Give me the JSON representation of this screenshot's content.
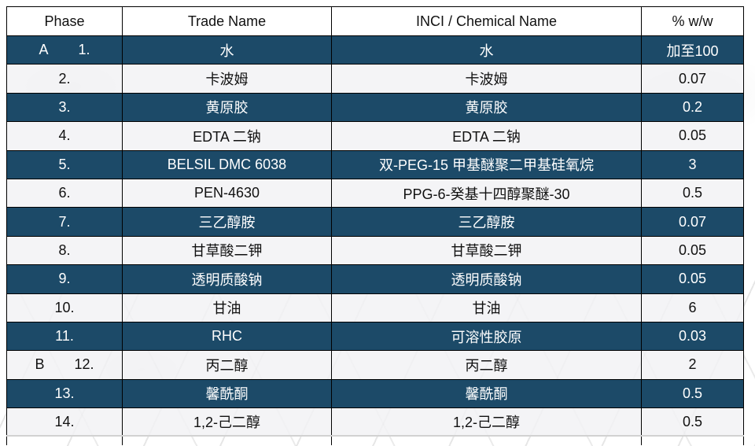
{
  "table": {
    "headers": [
      "Phase",
      "Trade Name",
      "INCI / Chemical Name",
      "% w/w"
    ],
    "rows": [
      {
        "phase_letter": "A",
        "no": "1.",
        "trade": "水",
        "inci": "水",
        "pct": "加至100"
      },
      {
        "phase_letter": "",
        "no": "2.",
        "trade": "卡波姆",
        "inci": "卡波姆",
        "pct": "0.07"
      },
      {
        "phase_letter": "",
        "no": "3.",
        "trade": "黄原胶",
        "inci": "黄原胶",
        "pct": "0.2"
      },
      {
        "phase_letter": "",
        "no": "4.",
        "trade": "EDTA 二钠",
        "inci": "EDTA 二钠",
        "pct": "0.05"
      },
      {
        "phase_letter": "",
        "no": "5.",
        "trade": "BELSIL DMC 6038",
        "inci": "双-PEG-15 甲基醚聚二甲基硅氧烷",
        "pct": "3"
      },
      {
        "phase_letter": "",
        "no": "6.",
        "trade": "PEN-4630",
        "inci": "PPG-6-癸基十四醇聚醚-30",
        "pct": "0.5"
      },
      {
        "phase_letter": "",
        "no": "7.",
        "trade": "三乙醇胺",
        "inci": "三乙醇胺",
        "pct": "0.07"
      },
      {
        "phase_letter": "",
        "no": "8.",
        "trade": "甘草酸二钾",
        "inci": "甘草酸二钾",
        "pct": "0.05"
      },
      {
        "phase_letter": "",
        "no": "9.",
        "trade": "透明质酸钠",
        "inci": "透明质酸钠",
        "pct": "0.05"
      },
      {
        "phase_letter": "",
        "no": "10.",
        "trade": "甘油",
        "inci": "甘油",
        "pct": "6"
      },
      {
        "phase_letter": "",
        "no": "11.",
        "trade": "RHC",
        "inci": "可溶性胶原",
        "pct": "0.03"
      },
      {
        "phase_letter": "B",
        "no": "12.",
        "trade": "丙二醇",
        "inci": "丙二醇",
        "pct": "2"
      },
      {
        "phase_letter": "",
        "no": "13.",
        "trade": "馨酰酮",
        "inci": "馨酰酮",
        "pct": "0.5"
      },
      {
        "phase_letter": "",
        "no": "14.",
        "trade": "1,2-己二醇",
        "inci": "1,2-己二醇",
        "pct": "0.5"
      }
    ]
  },
  "colors": {
    "dark_row_bg": "#1c4a68",
    "dark_row_text": "#ffffff",
    "light_row_bg": "#f3f3f4",
    "header_bg": "#ffffff",
    "body_text": "#111111",
    "border": "#000000"
  }
}
